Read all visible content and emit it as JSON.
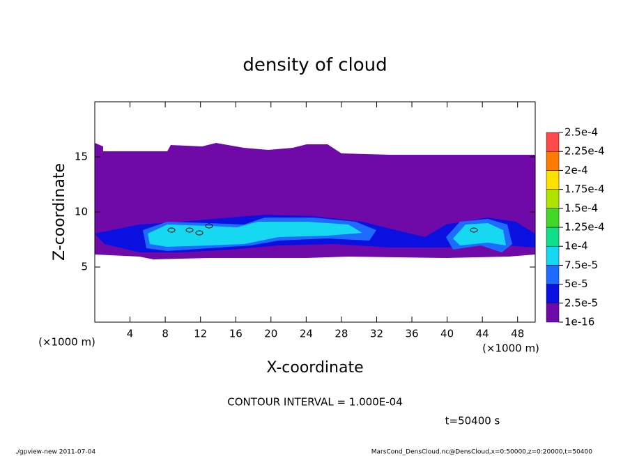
{
  "chart_data": {
    "type": "contour",
    "title": "density of cloud",
    "xlabel": "X-coordinate",
    "ylabel": "Z-coordinate",
    "x_unit": "(×1000 m)",
    "xlim": [
      0,
      50
    ],
    "ylim": [
      0,
      20
    ],
    "xticks": [
      4,
      8,
      12,
      16,
      20,
      24,
      28,
      32,
      36,
      40,
      44,
      48
    ],
    "yticks": [
      5,
      10,
      15
    ],
    "levels": [
      {
        "value": 1e-16,
        "label": "1e-16"
      },
      {
        "value": 2.5e-05,
        "label": "2.5e-5"
      },
      {
        "value": 5e-05,
        "label": "5e-5"
      },
      {
        "value": 7.5e-05,
        "label": "7.5e-5"
      },
      {
        "value": 0.0001,
        "label": "1e-4"
      },
      {
        "value": 0.000125,
        "label": "1.25e-4"
      },
      {
        "value": 0.00015,
        "label": "1.5e-4"
      },
      {
        "value": 0.000175,
        "label": "1.75e-4"
      },
      {
        "value": 0.0002,
        "label": "2e-4"
      },
      {
        "value": 0.000225,
        "label": "2.25e-4"
      },
      {
        "value": 0.00025,
        "label": "2.5e-4"
      }
    ],
    "colors": [
      "#6f0aa8",
      "#0a10e0",
      "#1e6cff",
      "#16d8f0",
      "#10e08a",
      "#44d628",
      "#b0e400",
      "#ffe000",
      "#ff7a00",
      "#ff4a4a"
    ],
    "contour_interval": "CONTOUR INTERVAL = 1.000E-04",
    "time": "t=50400 s",
    "footer_left": "./gpview-new  2011-07-04",
    "footer_right": "MarsCond_DensCloud.nc@DensCloud,x=0:50000,z=0:20000,t=50400"
  }
}
